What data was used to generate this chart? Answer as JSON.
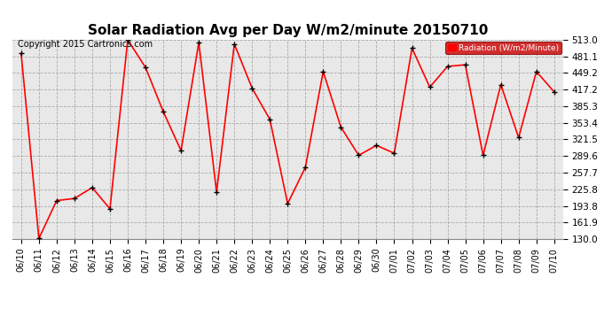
{
  "title": "Solar Radiation Avg per Day W/m2/minute 20150710",
  "copyright": "Copyright 2015 Cartronics.com",
  "legend_label": "Radiation (W/m2/Minute)",
  "ylim": [
    130.0,
    513.0
  ],
  "yticks": [
    130.0,
    161.9,
    193.8,
    225.8,
    257.7,
    289.6,
    321.5,
    353.4,
    385.3,
    417.2,
    449.2,
    481.1,
    513.0
  ],
  "dates": [
    "06/10",
    "06/11",
    "06/12",
    "06/13",
    "06/14",
    "06/15",
    "06/16",
    "06/17",
    "06/18",
    "06/19",
    "06/20",
    "06/21",
    "06/22",
    "06/23",
    "06/24",
    "06/25",
    "06/26",
    "06/27",
    "06/28",
    "06/29",
    "06/30",
    "07/01",
    "07/02",
    "07/03",
    "07/04",
    "07/05",
    "07/06",
    "07/07",
    "07/08",
    "07/09",
    "07/10"
  ],
  "values": [
    487.0,
    131.0,
    204.0,
    208.0,
    229.0,
    188.0,
    513.0,
    460.0,
    375.0,
    300.0,
    508.0,
    220.0,
    505.0,
    420.0,
    360.0,
    198.0,
    268.0,
    452.0,
    345.0,
    291.0,
    310.0,
    295.0,
    497.0,
    422.0,
    462.0,
    465.0,
    291.0,
    427.0,
    325.0,
    452.0,
    413.0
  ],
  "line_color": "#ff0000",
  "marker_color": "#000000",
  "bg_color": "#ffffff",
  "plot_bg_color": "#e8e8e8",
  "grid_color": "#aaaaaa",
  "legend_bg": "#cc0000",
  "legend_text_color": "#ffffff",
  "title_fontsize": 11,
  "tick_fontsize": 7.5,
  "copyright_fontsize": 7
}
